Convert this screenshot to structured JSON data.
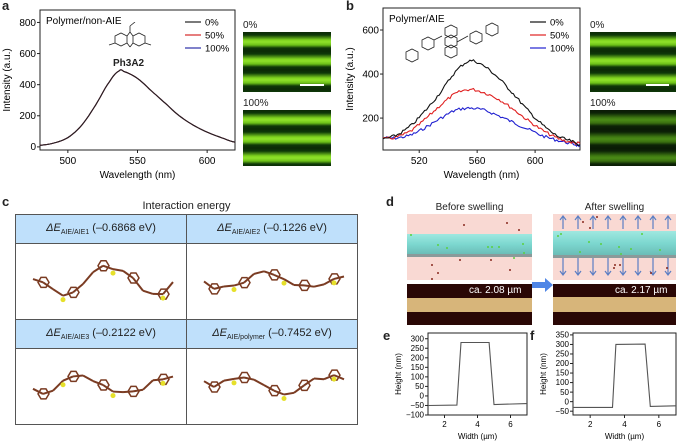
{
  "panels": {
    "a": "a",
    "b": "b",
    "c": "c",
    "d": "d",
    "e": "e",
    "f": "f"
  },
  "micrographs": {
    "a_top": "0%",
    "a_bottom": "100%",
    "b_top": "0%",
    "b_bottom": "100%"
  },
  "molecule_a_label": "Ph3A2",
  "table": {
    "title": "Interaction energy",
    "cells": [
      {
        "symbol": "ΔE",
        "sub": "AIE/AIE1",
        "value": "(–0.6868 eV)"
      },
      {
        "symbol": "ΔE",
        "sub": "AIE/AIE2",
        "value": "(–0.1226 eV)"
      },
      {
        "symbol": "ΔE",
        "sub": "AIE/AIE3",
        "value": "(–0.2122 eV)"
      },
      {
        "symbol": "ΔE",
        "sub": "AIE/polymer",
        "value": "(–0.7452 eV)"
      }
    ]
  },
  "swelling": {
    "before": "Before swelling",
    "after": "After swelling",
    "before_width": "ca. 2.08 µm",
    "after_width": "ca. 2.17 µm"
  },
  "chart_data": [
    {
      "type": "line",
      "title": "Polymer/non-AIE",
      "xlabel": "Wavelength (nm)",
      "ylabel": "Intensity (a.u.)",
      "xlim": [
        480,
        620
      ],
      "ylim": [
        -20,
        880
      ],
      "xticks": [
        500,
        550,
        600
      ],
      "yticks": [
        0,
        200,
        400,
        600,
        800
      ],
      "x": [
        480,
        490,
        500,
        510,
        520,
        530,
        537,
        540,
        550,
        560,
        570,
        580,
        590,
        600,
        610,
        620
      ],
      "series": [
        {
          "name": "0%",
          "color": "#222222",
          "values": [
            10,
            25,
            60,
            140,
            270,
            420,
            490,
            485,
            440,
            360,
            280,
            200,
            140,
            95,
            60,
            30
          ]
        },
        {
          "name": "50%",
          "color": "#d62728",
          "values": [
            10,
            25,
            60,
            140,
            270,
            420,
            490,
            485,
            440,
            360,
            280,
            200,
            140,
            95,
            60,
            30
          ]
        },
        {
          "name": "100%",
          "color": "#2b2fa8",
          "values": [
            10,
            25,
            60,
            140,
            270,
            420,
            490,
            485,
            440,
            360,
            280,
            200,
            140,
            95,
            60,
            30
          ]
        }
      ]
    },
    {
      "type": "line",
      "title": "Polymer/AIE",
      "xlabel": "Wavelength (nm)",
      "ylabel": "Intensity (a.u.)",
      "xlim": [
        495,
        631
      ],
      "ylim": [
        55,
        700
      ],
      "xticks": [
        520,
        560,
        600
      ],
      "yticks": [
        200,
        400,
        600
      ],
      "x": [
        495,
        505,
        515,
        525,
        535,
        545,
        555,
        565,
        575,
        585,
        595,
        605,
        615,
        625,
        631
      ],
      "series": [
        {
          "name": "0%",
          "color": "#111111",
          "values": [
            105,
            125,
            170,
            240,
            320,
            410,
            460,
            435,
            380,
            310,
            235,
            170,
            120,
            95,
            80
          ]
        },
        {
          "name": "50%",
          "color": "#e02020",
          "values": [
            105,
            115,
            145,
            200,
            260,
            310,
            330,
            315,
            285,
            240,
            190,
            145,
            110,
            90,
            85
          ]
        },
        {
          "name": "100%",
          "color": "#2020d0",
          "values": [
            110,
            110,
            125,
            160,
            200,
            235,
            245,
            235,
            210,
            180,
            150,
            120,
            100,
            85,
            75
          ]
        }
      ]
    },
    {
      "type": "line",
      "title": "",
      "xlabel": "Width (µm)",
      "ylabel": "Height (nm)",
      "xlim": [
        1,
        7
      ],
      "ylim": [
        -100,
        330
      ],
      "xticks": [
        2,
        4,
        6
      ],
      "yticks": [
        -100,
        -50,
        0,
        50,
        100,
        150,
        200,
        250,
        300
      ],
      "x": [
        1,
        2.75,
        3.0,
        4.7,
        5.0,
        7
      ],
      "series": [
        {
          "name": "before",
          "color": "#555555",
          "values": [
            -50,
            -48,
            280,
            280,
            -45,
            -40
          ]
        }
      ]
    },
    {
      "type": "line",
      "title": "",
      "xlabel": "Width (µm)",
      "ylabel": "Height (nm)",
      "xlim": [
        1,
        7
      ],
      "ylim": [
        -70,
        360
      ],
      "xticks": [
        2,
        4,
        6
      ],
      "yticks": [
        -50,
        0,
        50,
        100,
        150,
        200,
        250,
        300,
        350
      ],
      "x": [
        1,
        3.3,
        3.5,
        5.2,
        5.5,
        7
      ],
      "series": [
        {
          "name": "after",
          "color": "#555555",
          "values": [
            -30,
            -30,
            300,
            302,
            -25,
            -22
          ]
        }
      ]
    }
  ]
}
